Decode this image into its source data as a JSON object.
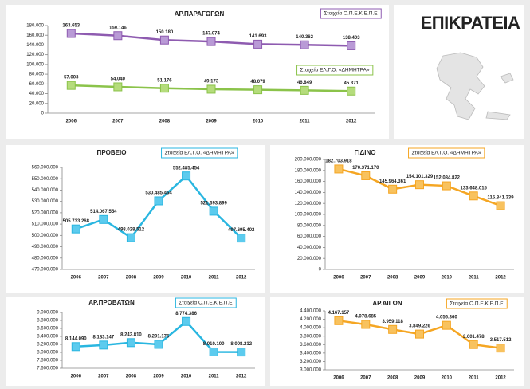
{
  "title": "ΕΠΙΚΡΑΤΕΙΑ",
  "chart_data": [
    {
      "type": "line",
      "title": "ΑΡ.ΠΑΡΑΓΩΓΩΝ",
      "annotations": [
        "Στοιχεία Ο.Π.Ε.Κ.Ε.Π.Ε",
        "Στοιχεία ΕΛ.Γ.Ο. «ΔΗΜΗΤΡΑ»"
      ],
      "categories": [
        "2006",
        "2007",
        "2008",
        "2009",
        "2010",
        "2011",
        "2012"
      ],
      "series": [
        {
          "color": "#8e5bb0",
          "marker": "#b99ad6",
          "values": [
            163653,
            159146,
            150180,
            147074,
            141693,
            140362,
            138403
          ],
          "value_labels": [
            "163.653",
            "159.146",
            "150.180",
            "147.074",
            "141.693",
            "140.362",
            "138.403"
          ]
        },
        {
          "color": "#8bc34a",
          "marker": "#b5dc7c",
          "values": [
            57003,
            54040,
            51176,
            49173,
            48079,
            46849,
            45371
          ],
          "value_labels": [
            "57.003",
            "54.040",
            "51.176",
            "49.173",
            "48.079",
            "46.849",
            "45.371"
          ]
        }
      ],
      "ylim": [
        0,
        180000
      ],
      "yticks": [
        0,
        {
          "value": 20000,
          "label": "20.000"
        },
        {
          "value": 40000,
          "label": "40.000"
        },
        {
          "value": 60000,
          "label": "60.000"
        },
        {
          "value": 80000,
          "label": "80.000"
        },
        {
          "value": 100000,
          "label": "100.000"
        },
        {
          "value": 120000,
          "label": "120.000"
        },
        {
          "value": 140000,
          "label": "140.000"
        },
        {
          "value": 160000,
          "label": "160.000"
        },
        {
          "value": 180000,
          "label": "180.000"
        }
      ]
    },
    {
      "type": "line",
      "title": "ΠΡΟΒΕΙΟ",
      "annotations": [
        "Στοιχεία ΕΛ.Γ.Ο. «ΔΗΜΗΤΡΑ»"
      ],
      "categories": [
        "2006",
        "2007",
        "2008",
        "2009",
        "2010",
        "2011",
        "2012"
      ],
      "series": [
        {
          "color": "#29b6e0",
          "marker": "#5ccbee",
          "values": [
            505733268,
            514067554,
            498028512,
            530485464,
            552485454,
            521393899,
            497695402
          ],
          "value_labels": [
            "505.733.268",
            "514.067.554",
            "498.028.512",
            "530.485.464",
            "552.485.454",
            "521.393.899",
            "497.695.402"
          ]
        }
      ],
      "ylim": [
        470000000,
        560000000
      ],
      "yticks": [
        {
          "value": 470000000,
          "label": "470.000.000"
        },
        {
          "value": 480000000,
          "label": "480.000.000"
        },
        {
          "value": 490000000,
          "label": "490.000.000"
        },
        {
          "value": 500000000,
          "label": "500.000.000"
        },
        {
          "value": 510000000,
          "label": "510.000.000"
        },
        {
          "value": 520000000,
          "label": "520.000.000"
        },
        {
          "value": 530000000,
          "label": "530.000.000"
        },
        {
          "value": 540000000,
          "label": "540.000.000"
        },
        {
          "value": 550000000,
          "label": "550.000.000"
        },
        {
          "value": 560000000,
          "label": "560.000.000"
        }
      ]
    },
    {
      "type": "line",
      "title": "ΓΙΔΙΝΟ",
      "annotations": [
        "Στοιχεία ΕΛ.Γ.Ο. «ΔΗΜΗΤΡΑ»"
      ],
      "categories": [
        "2006",
        "2007",
        "2008",
        "2009",
        "2010",
        "2011",
        "2012"
      ],
      "series": [
        {
          "color": "#f5a623",
          "marker": "#f8c25e",
          "values": [
            182703918,
            170371170,
            145964361,
            154101329,
            152084822,
            133648015,
            115841339
          ],
          "value_labels": [
            "182.703.918",
            "170.371.170",
            "145.964.361",
            "154.101.329",
            "152.084.822",
            "133.648.015",
            "115.841.339"
          ]
        }
      ],
      "ylim": [
        0,
        200000000
      ],
      "yticks": [
        0,
        {
          "value": 20000000,
          "label": "20.000.000"
        },
        {
          "value": 40000000,
          "label": "40.000.000"
        },
        {
          "value": 60000000,
          "label": "60.000.000"
        },
        {
          "value": 80000000,
          "label": "80.000.000"
        },
        {
          "value": 100000000,
          "label": "100.000.000"
        },
        {
          "value": 120000000,
          "label": "120.000.000"
        },
        {
          "value": 140000000,
          "label": "140.000.000"
        },
        {
          "value": 160000000,
          "label": "160.000.000"
        },
        {
          "value": 180000000,
          "label": "180.000.000"
        },
        {
          "value": 200000000,
          "label": "200.000.000"
        }
      ]
    },
    {
      "type": "line",
      "title": "ΑΡ.ΠΡΟΒΑΤΩΝ",
      "annotations": [
        "Στοιχεία Ο.Π.Ε.Κ.Ε.Π.Ε"
      ],
      "categories": [
        "2006",
        "2007",
        "2008",
        "2009",
        "2010",
        "2011",
        "2012"
      ],
      "series": [
        {
          "color": "#29b6e0",
          "marker": "#5ccbee",
          "values": [
            8144090,
            8183147,
            8243810,
            8201175,
            8774386,
            8010100,
            8008212
          ],
          "value_labels": [
            "8.144.090",
            "8.183.147",
            "8.243.810",
            "8.201.175",
            "8.774.386",
            "8.010.100",
            "8.008.212"
          ]
        }
      ],
      "ylim": [
        7600000,
        9000000
      ],
      "yticks": [
        {
          "value": 7600000,
          "label": "7.600.000"
        },
        {
          "value": 7800000,
          "label": "7.800.000"
        },
        {
          "value": 8000000,
          "label": "8.000.000"
        },
        {
          "value": 8200000,
          "label": "8.200.000"
        },
        {
          "value": 8400000,
          "label": "8.400.000"
        },
        {
          "value": 8600000,
          "label": "8.600.000"
        },
        {
          "value": 8800000,
          "label": "8.800.000"
        },
        {
          "value": 9000000,
          "label": "9.000.000"
        }
      ]
    },
    {
      "type": "line",
      "title": "ΑΡ.ΑΙΓΩΝ",
      "annotations": [
        "Στοιχεία Ο.Π.Ε.Κ.Ε.Π.Ε"
      ],
      "categories": [
        "2006",
        "2007",
        "2008",
        "2009",
        "2010",
        "2011",
        "2012"
      ],
      "series": [
        {
          "color": "#f5a623",
          "marker": "#f8c25e",
          "values": [
            4167157,
            4078685,
            3959118,
            3849226,
            4056360,
            3601478,
            3517512
          ],
          "value_labels": [
            "4.167.157",
            "4.078.685",
            "3.959.118",
            "3.849.226",
            "4.056.360",
            "3.601.478",
            "3.517.512"
          ]
        }
      ],
      "ylim": [
        3000000,
        4400000
      ],
      "yticks": [
        {
          "value": 3000000,
          "label": "3.000.000"
        },
        {
          "value": 3200000,
          "label": "3.200.000"
        },
        {
          "value": 3400000,
          "label": "3.400.000"
        },
        {
          "value": 3600000,
          "label": "3.600.000"
        },
        {
          "value": 3800000,
          "label": "3.800.000"
        },
        {
          "value": 4000000,
          "label": "4.000.000"
        },
        {
          "value": 4200000,
          "label": "4.200.000"
        },
        {
          "value": 4400000,
          "label": "4.400.000"
        }
      ]
    }
  ]
}
